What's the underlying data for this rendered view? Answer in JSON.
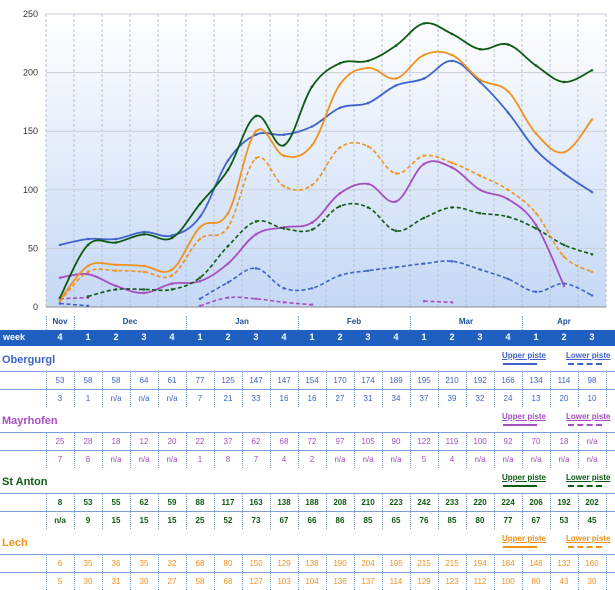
{
  "chart_data": {
    "type": "line",
    "ylim": [
      0,
      250
    ],
    "yticks": [
      0,
      50,
      100,
      150,
      200,
      250
    ],
    "grid": true,
    "x": [
      "Nov 4",
      "Dec 1",
      "Dec 2",
      "Dec 3",
      "Dec 4",
      "Jan 1",
      "Jan 2",
      "Jan 3",
      "Jan 4",
      "Feb 1",
      "Feb 2",
      "Feb 3",
      "Feb 4",
      "Mar 1",
      "Mar 2",
      "Mar 3",
      "Mar 4",
      "Apr 1",
      "Apr 2",
      "Apr 3"
    ],
    "series": [
      {
        "resort": "Obergurgl",
        "piste": "upper",
        "color": "#3f63c8",
        "style": "solid",
        "values": [
          53,
          58,
          58,
          64,
          61,
          77,
          125,
          147,
          147,
          154,
          170,
          174,
          189,
          195,
          210,
          192,
          166,
          134,
          114,
          98
        ]
      },
      {
        "resort": "Obergurgl",
        "piste": "lower",
        "color": "#3f63c8",
        "style": "dashed",
        "values": [
          3,
          1,
          null,
          null,
          null,
          7,
          21,
          33,
          16,
          16,
          27,
          31,
          34,
          37,
          39,
          32,
          24,
          13,
          20,
          10
        ]
      },
      {
        "resort": "Mayrhofen",
        "piste": "upper",
        "color": "#a64fc0",
        "style": "solid",
        "values": [
          25,
          28,
          18,
          12,
          20,
          22,
          37,
          62,
          68,
          72,
          97,
          105,
          90,
          122,
          119,
          100,
          92,
          70,
          18,
          null
        ]
      },
      {
        "resort": "Mayrhofen",
        "piste": "lower",
        "color": "#a64fc0",
        "style": "dashed",
        "values": [
          7,
          8,
          null,
          null,
          null,
          1,
          8,
          7,
          4,
          2,
          null,
          null,
          null,
          5,
          4,
          null,
          null,
          null,
          null,
          null
        ]
      },
      {
        "resort": "St Anton",
        "piste": "upper",
        "color": "#0d5a12",
        "style": "solid",
        "values": [
          8,
          53,
          55,
          62,
          59,
          88,
          117,
          163,
          138,
          188,
          208,
          210,
          223,
          242,
          233,
          220,
          224,
          206,
          192,
          202
        ]
      },
      {
        "resort": "St Anton",
        "piste": "lower",
        "color": "#0d5a12",
        "style": "dashed",
        "values": [
          null,
          9,
          15,
          15,
          15,
          25,
          52,
          73,
          67,
          66,
          86,
          85,
          65,
          76,
          85,
          80,
          77,
          67,
          53,
          45
        ]
      },
      {
        "resort": "Lech",
        "piste": "upper",
        "color": "#f0921e",
        "style": "solid",
        "values": [
          6,
          35,
          36,
          35,
          32,
          68,
          80,
          150,
          129,
          138,
          190,
          204,
          195,
          215,
          215,
          194,
          184,
          148,
          132,
          160
        ]
      },
      {
        "resort": "Lech",
        "piste": "lower",
        "color": "#f0921e",
        "style": "dashed",
        "values": [
          5,
          30,
          31,
          30,
          27,
          58,
          68,
          127,
          103,
          104,
          136,
          137,
          114,
          129,
          123,
          112,
          100,
          80,
          43,
          30
        ]
      }
    ]
  },
  "months": [
    {
      "label": "Nov",
      "start": 0,
      "span": 1
    },
    {
      "label": "Dec",
      "start": 1,
      "span": 4
    },
    {
      "label": "Jan",
      "start": 5,
      "span": 4
    },
    {
      "label": "Feb",
      "start": 9,
      "span": 4
    },
    {
      "label": "Mar",
      "start": 13,
      "span": 4
    },
    {
      "label": "Apr",
      "start": 17,
      "span": 3
    }
  ],
  "week_label": "week",
  "weeks": [
    "4",
    "1",
    "2",
    "3",
    "4",
    "1",
    "2",
    "3",
    "4",
    "1",
    "2",
    "3",
    "4",
    "1",
    "2",
    "3",
    "4",
    "1",
    "2",
    "3"
  ],
  "upper_piste_label": "Upper piste",
  "lower_piste_label": "Lower piste",
  "table": [
    {
      "resort": "Obergurgl",
      "color": "#3f63c8",
      "upper": [
        "53",
        "58",
        "58",
        "64",
        "61",
        "77",
        "125",
        "147",
        "147",
        "154",
        "170",
        "174",
        "189",
        "195",
        "210",
        "192",
        "166",
        "134",
        "114",
        "98"
      ],
      "lower": [
        "3",
        "1",
        "n/a",
        "n/a",
        "n/a",
        "7",
        "21",
        "33",
        "16",
        "16",
        "27",
        "31",
        "34",
        "37",
        "39",
        "32",
        "24",
        "13",
        "20",
        "10"
      ]
    },
    {
      "resort": "Mayrhofen",
      "color": "#a64fc0",
      "upper": [
        "25",
        "28",
        "18",
        "12",
        "20",
        "22",
        "37",
        "62",
        "68",
        "72",
        "97",
        "105",
        "90",
        "122",
        "119",
        "100",
        "92",
        "70",
        "18",
        "n/a"
      ],
      "lower": [
        "7",
        "8",
        "n/a",
        "n/a",
        "n/a",
        "1",
        "8",
        "7",
        "4",
        "2",
        "n/a",
        "n/a",
        "n/a",
        "5",
        "4",
        "n/a",
        "n/a",
        "n/a",
        "n/a",
        "n/a"
      ]
    },
    {
      "resort": "St Anton",
      "color": "#0d5a12",
      "upper": [
        "8",
        "53",
        "55",
        "62",
        "59",
        "88",
        "117",
        "163",
        "138",
        "188",
        "208",
        "210",
        "223",
        "242",
        "233",
        "220",
        "224",
        "206",
        "192",
        "202"
      ],
      "lower": [
        "n/a",
        "9",
        "15",
        "15",
        "15",
        "25",
        "52",
        "73",
        "67",
        "66",
        "86",
        "85",
        "65",
        "76",
        "85",
        "80",
        "77",
        "67",
        "53",
        "45"
      ]
    },
    {
      "resort": "Lech",
      "color": "#f0921e",
      "upper": [
        "6",
        "35",
        "36",
        "35",
        "32",
        "68",
        "80",
        "150",
        "129",
        "138",
        "190",
        "204",
        "195",
        "215",
        "215",
        "194",
        "184",
        "148",
        "132",
        "160"
      ],
      "lower": [
        "5",
        "30",
        "31",
        "30",
        "27",
        "58",
        "68",
        "127",
        "103",
        "104",
        "136",
        "137",
        "114",
        "129",
        "123",
        "112",
        "100",
        "80",
        "43",
        "30"
      ]
    }
  ]
}
